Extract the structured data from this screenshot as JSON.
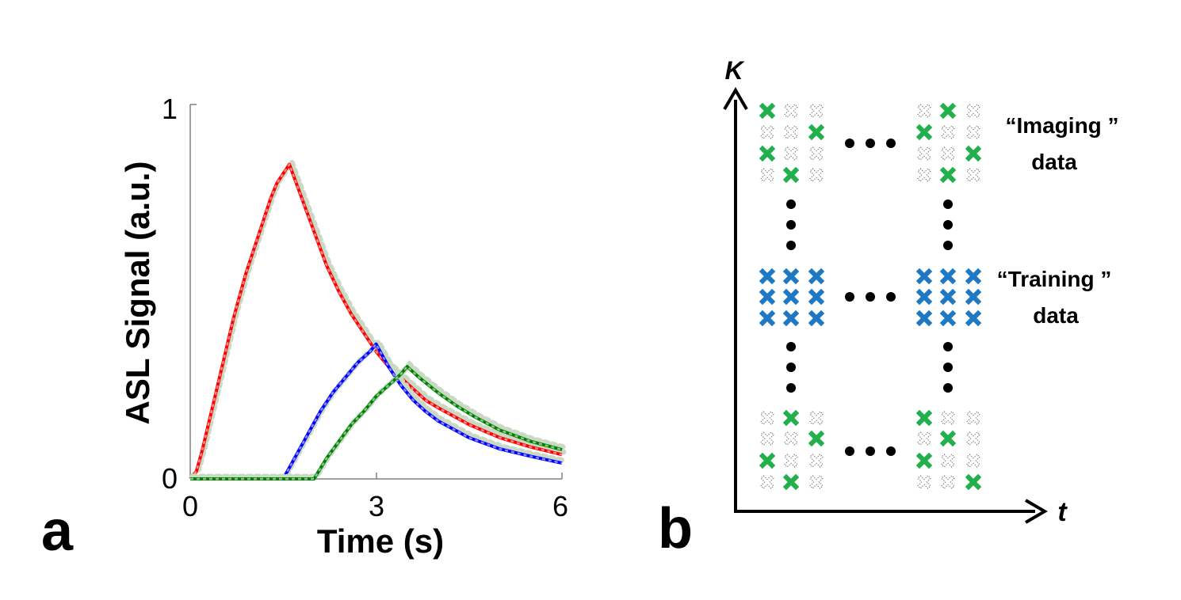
{
  "panels": {
    "a": {
      "label": "a"
    },
    "b": {
      "label": "b"
    }
  },
  "chart_data": {
    "type": "line",
    "title": "",
    "xlabel": "Time (s)",
    "ylabel": "ASL Signal (a.u.)",
    "xlim": [
      0,
      6
    ],
    "ylim": [
      0,
      1
    ],
    "xticks": [
      "0",
      "3",
      "6"
    ],
    "yticks": [
      "0",
      "1"
    ],
    "grid": false,
    "series": [
      {
        "color": "#ff0000",
        "points": [
          [
            0,
            0
          ],
          [
            0.1,
            0.02
          ],
          [
            0.2,
            0.08
          ],
          [
            0.3,
            0.15
          ],
          [
            0.4,
            0.22
          ],
          [
            0.5,
            0.29
          ],
          [
            0.6,
            0.36
          ],
          [
            0.7,
            0.43
          ],
          [
            0.8,
            0.49
          ],
          [
            0.9,
            0.55
          ],
          [
            1.0,
            0.6
          ],
          [
            1.1,
            0.65
          ],
          [
            1.2,
            0.7
          ],
          [
            1.3,
            0.75
          ],
          [
            1.4,
            0.79
          ],
          [
            1.6,
            0.84
          ],
          [
            1.8,
            0.75
          ],
          [
            2.0,
            0.66
          ],
          [
            2.2,
            0.57
          ],
          [
            2.4,
            0.5
          ],
          [
            2.6,
            0.44
          ],
          [
            2.8,
            0.39
          ],
          [
            3.0,
            0.34
          ],
          [
            3.2,
            0.3
          ],
          [
            3.4,
            0.27
          ],
          [
            3.6,
            0.24
          ],
          [
            3.8,
            0.21
          ],
          [
            4.0,
            0.19
          ],
          [
            4.5,
            0.145
          ],
          [
            5.0,
            0.11
          ],
          [
            5.5,
            0.085
          ],
          [
            6.0,
            0.065
          ]
        ]
      },
      {
        "color": "#0000ff",
        "points": [
          [
            0,
            0
          ],
          [
            1.5,
            0
          ],
          [
            1.7,
            0.06
          ],
          [
            1.9,
            0.12
          ],
          [
            2.1,
            0.18
          ],
          [
            2.3,
            0.23
          ],
          [
            2.5,
            0.27
          ],
          [
            2.7,
            0.31
          ],
          [
            2.9,
            0.34
          ],
          [
            3.0,
            0.36
          ],
          [
            3.2,
            0.3
          ],
          [
            3.4,
            0.25
          ],
          [
            3.6,
            0.21
          ],
          [
            3.8,
            0.18
          ],
          [
            4.0,
            0.155
          ],
          [
            4.5,
            0.11
          ],
          [
            5.0,
            0.08
          ],
          [
            5.5,
            0.06
          ],
          [
            6.0,
            0.042
          ]
        ]
      },
      {
        "color": "#008000",
        "points": [
          [
            0,
            0
          ],
          [
            2.0,
            0
          ],
          [
            2.2,
            0.055
          ],
          [
            2.4,
            0.1
          ],
          [
            2.6,
            0.145
          ],
          [
            2.8,
            0.18
          ],
          [
            3.0,
            0.22
          ],
          [
            3.2,
            0.25
          ],
          [
            3.4,
            0.28
          ],
          [
            3.5,
            0.3
          ],
          [
            3.7,
            0.27
          ],
          [
            4.0,
            0.23
          ],
          [
            4.3,
            0.195
          ],
          [
            4.6,
            0.165
          ],
          [
            5.0,
            0.13
          ],
          [
            5.5,
            0.1
          ],
          [
            6.0,
            0.078
          ]
        ]
      }
    ]
  },
  "diagram": {
    "y_axis_label": "K",
    "x_axis_label": "t",
    "imaging_label_line1": "“Imaging ”",
    "imaging_label_line2": "data",
    "training_label_line1": "“Training ”",
    "training_label_line2": "data",
    "colors": {
      "green": "#22b04c",
      "blue": "#1f78c4",
      "empty": "#777777"
    },
    "blocks": {
      "imaging_left": [
        [
          1,
          0,
          0
        ],
        [
          0,
          0,
          1
        ],
        [
          1,
          0,
          0
        ],
        [
          0,
          1,
          0
        ]
      ],
      "imaging_right": [
        [
          0,
          1,
          0
        ],
        [
          1,
          0,
          0
        ],
        [
          0,
          0,
          1
        ],
        [
          0,
          1,
          0
        ]
      ],
      "training_left": [
        [
          2,
          2,
          2
        ],
        [
          2,
          2,
          2
        ],
        [
          2,
          2,
          2
        ]
      ],
      "training_right": [
        [
          2,
          2,
          2
        ],
        [
          2,
          2,
          2
        ],
        [
          2,
          2,
          2
        ]
      ],
      "bottom_left": [
        [
          0,
          1,
          0
        ],
        [
          0,
          0,
          1
        ],
        [
          1,
          0,
          0
        ],
        [
          0,
          1,
          0
        ]
      ],
      "bottom_right": [
        [
          1,
          0,
          0
        ],
        [
          0,
          1,
          0
        ],
        [
          1,
          0,
          0
        ],
        [
          0,
          0,
          1
        ]
      ]
    }
  }
}
